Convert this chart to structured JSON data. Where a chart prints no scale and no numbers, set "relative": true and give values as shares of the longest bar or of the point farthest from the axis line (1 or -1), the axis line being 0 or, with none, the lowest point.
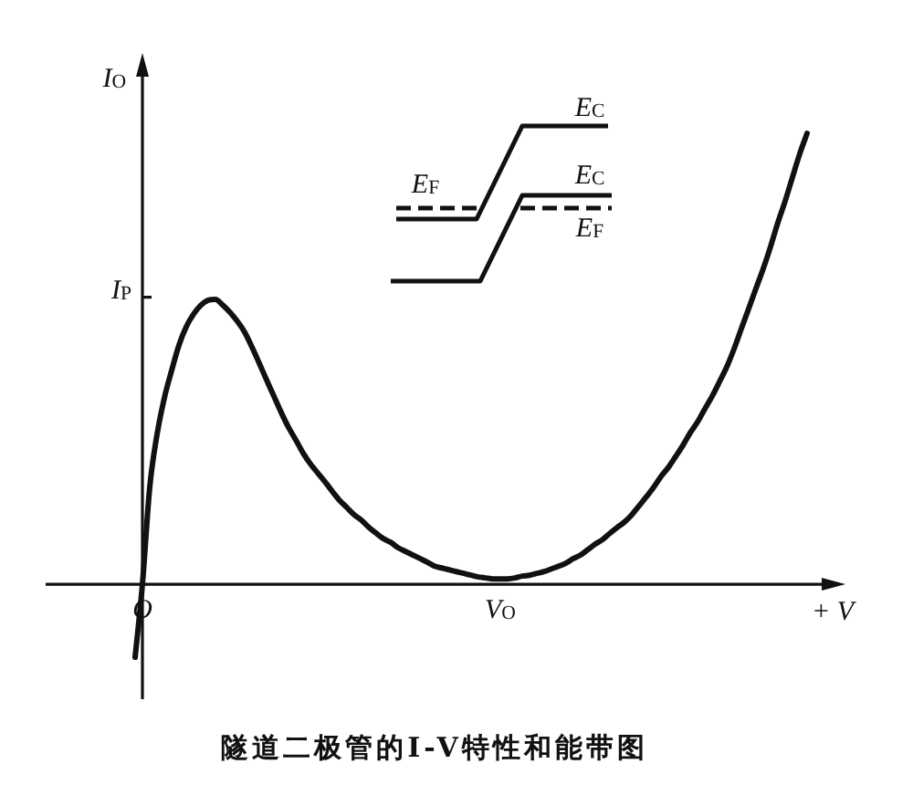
{
  "chart_data": {
    "type": "line",
    "title": "隧道二极管的I-V特性和能带图",
    "xlabel": "+ V",
    "ylabel": "I$_{O}$",
    "relative": true,
    "categories": [
      null,
      "O",
      null,
      null,
      null,
      null,
      null,
      null,
      null,
      null,
      null,
      null,
      null,
      null,
      null,
      null,
      null,
      null,
      null,
      null,
      null,
      null,
      null,
      null,
      null,
      null,
      null,
      null,
      null,
      null,
      null,
      null,
      null,
      null,
      null,
      null,
      null,
      null,
      null,
      null,
      null,
      null,
      null,
      null,
      null,
      null,
      null,
      null,
      null,
      null,
      "V$_{O}$",
      null,
      null,
      null,
      null,
      null,
      null,
      null,
      null,
      null,
      null,
      null,
      null,
      null,
      null,
      null,
      null,
      null,
      null,
      null,
      null,
      null,
      null,
      null,
      null,
      null,
      null,
      null,
      null,
      null,
      null,
      null,
      null,
      null,
      null,
      null,
      null,
      null,
      null,
      null,
      null,
      null,
      null
    ],
    "values": [
      -0.162,
      0,
      0.215,
      0.332,
      0.413,
      0.474,
      0.53,
      0.571,
      0.599,
      0.619,
      0.63,
      0.632,
      0.619,
      0.603,
      0.583,
      0.559,
      0.526,
      0.49,
      0.453,
      0.417,
      0.381,
      0.348,
      0.32,
      0.291,
      0.267,
      0.247,
      0.227,
      0.206,
      0.186,
      0.17,
      0.154,
      0.142,
      0.126,
      0.113,
      0.101,
      0.093,
      0.081,
      0.073,
      0.065,
      0.057,
      0.049,
      0.04,
      0.036,
      0.032,
      0.028,
      0.024,
      0.02,
      0.016,
      0.014,
      0.012,
      0.012,
      0.012,
      0.014,
      0.018,
      0.02,
      0.024,
      0.028,
      0.034,
      0.04,
      0.047,
      0.057,
      0.065,
      0.077,
      0.089,
      0.099,
      0.113,
      0.126,
      0.138,
      0.154,
      0.174,
      0.194,
      0.215,
      0.239,
      0.259,
      0.283,
      0.308,
      0.336,
      0.36,
      0.389,
      0.417,
      0.449,
      0.482,
      0.522,
      0.567,
      0.611,
      0.656,
      0.7,
      0.749,
      0.802,
      0.85,
      0.903,
      0.955,
      1
    ],
    "color": "#111111",
    "annotations": [
      "I$_{P}$",
      "E$_{C}$",
      "E$_{F}$",
      "E$_{C}$",
      "E$_{F}$"
    ]
  }
}
